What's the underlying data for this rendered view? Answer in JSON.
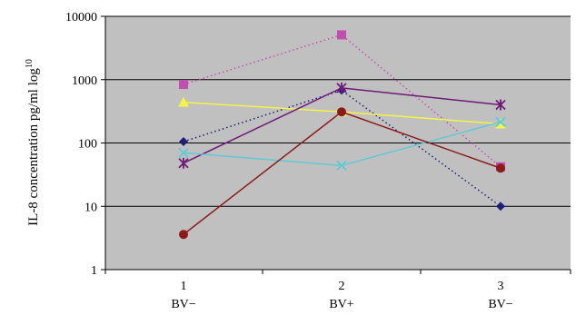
{
  "chart_data": {
    "type": "line",
    "title": "",
    "xlabel": "",
    "ylabel": "IL-8 concentration pg/ml log",
    "ylabel_superscript": "10",
    "y_scale": "log",
    "ylim": [
      1,
      10000
    ],
    "y_ticks": [
      "1",
      "10",
      "100",
      "1000",
      "10000"
    ],
    "x": [
      1,
      2,
      3
    ],
    "x_tick_labels": [
      "1",
      "2",
      "3"
    ],
    "x_category_labels": [
      "BV−",
      "BV+",
      "BV−"
    ],
    "grid": "horizontal",
    "plot_background": "#c0c0c0",
    "series": [
      {
        "values": [
          840,
          5100,
          42
        ],
        "color": "#c24fb0",
        "marker": "square",
        "line": "dotted"
      },
      {
        "values": [
          105,
          680,
          10
        ],
        "color": "#1f1f7a",
        "marker": "diamond",
        "line": "dotted"
      },
      {
        "values": [
          440,
          310,
          200
        ],
        "color": "#f3f34a",
        "marker": "triangle",
        "line": "solid"
      },
      {
        "values": [
          48,
          740,
          400
        ],
        "color": "#6e1a78",
        "marker": "asterisk",
        "line": "solid"
      },
      {
        "values": [
          70,
          44,
          215
        ],
        "color": "#5fc9d6",
        "marker": "x",
        "line": "solid"
      },
      {
        "values": [
          3.6,
          310,
          40
        ],
        "color": "#8b1a1a",
        "marker": "circle",
        "line": "solid"
      }
    ]
  }
}
